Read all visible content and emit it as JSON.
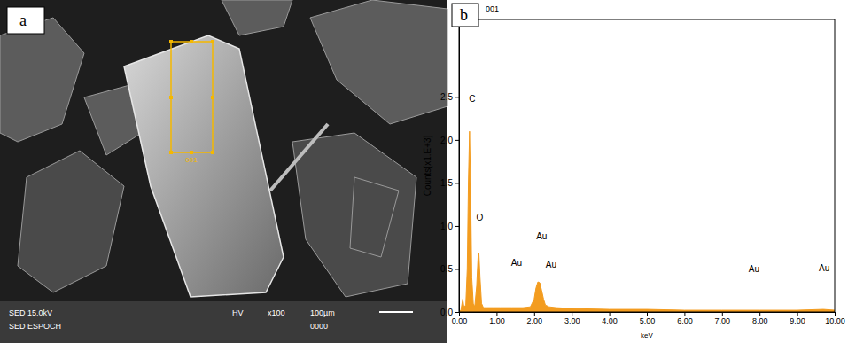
{
  "chart_data": {
    "type": "area",
    "title": "001",
    "panel_label": "b",
    "x_label": "keV",
    "y_label": "Counts[x1.E+3]",
    "color": "#f39c1f",
    "x": [
      0.0,
      0.05,
      0.1,
      0.13,
      0.18,
      0.22,
      0.25,
      0.28,
      0.31,
      0.34,
      0.38,
      0.42,
      0.47,
      0.51,
      0.53,
      0.56,
      0.6,
      0.65,
      0.75,
      0.9,
      1.1,
      1.4,
      1.7,
      1.9,
      2.0,
      2.05,
      2.1,
      2.15,
      2.2,
      2.25,
      2.3,
      2.4,
      2.6,
      3.0,
      4.0,
      5.0,
      6.0,
      7.0,
      8.0,
      9.0,
      9.7,
      10.0
    ],
    "values": [
      0.0,
      0.02,
      0.15,
      0.06,
      0.08,
      0.5,
      1.5,
      2.1,
      1.4,
      0.4,
      0.1,
      0.06,
      0.3,
      0.66,
      0.68,
      0.4,
      0.1,
      0.05,
      0.05,
      0.05,
      0.05,
      0.05,
      0.05,
      0.06,
      0.15,
      0.28,
      0.35,
      0.34,
      0.25,
      0.15,
      0.08,
      0.06,
      0.05,
      0.04,
      0.03,
      0.03,
      0.02,
      0.02,
      0.02,
      0.02,
      0.03,
      0.02
    ],
    "xlim": [
      0,
      10
    ],
    "ylim": [
      0,
      3.4
    ],
    "xticks": [
      {
        "value": 0,
        "label": "0.00"
      },
      {
        "value": 1,
        "label": "1.00"
      },
      {
        "value": 2,
        "label": "2.00"
      },
      {
        "value": 3,
        "label": "3.00"
      },
      {
        "value": 4,
        "label": "4.00"
      },
      {
        "value": 5,
        "label": "5.00"
      },
      {
        "value": 6,
        "label": "6.00"
      },
      {
        "value": 7,
        "label": "7.00"
      },
      {
        "value": 8,
        "label": "8.00"
      },
      {
        "value": 9,
        "label": "9.00"
      },
      {
        "value": 10,
        "label": "10.00"
      }
    ],
    "yticks": [
      {
        "value": 0,
        "label": "0.0"
      },
      {
        "value": 0.5,
        "label": "0.5"
      },
      {
        "value": 1,
        "label": "1.0"
      },
      {
        "value": 1.5,
        "label": "1.5"
      },
      {
        "value": 2,
        "label": "2.0"
      },
      {
        "value": 2.5,
        "label": "2.5"
      }
    ],
    "annotations": [
      {
        "text": "C",
        "x": 0.35,
        "y": 2.44
      },
      {
        "text": "O",
        "x": 0.55,
        "y": 1.06
      },
      {
        "text": "Au",
        "x": 1.53,
        "y": 0.54
      },
      {
        "text": "Au",
        "x": 2.2,
        "y": 0.85
      },
      {
        "text": "Au",
        "x": 2.45,
        "y": 0.52
      },
      {
        "text": "Au",
        "x": 7.85,
        "y": 0.46
      },
      {
        "text": "Au",
        "x": 9.72,
        "y": 0.47
      }
    ]
  },
  "micrograph": {
    "panel_label": "a",
    "region_label": "001",
    "info_texts": [
      "SED 15.0kV",
      "SED ESPOCH",
      "HV",
      "x100",
      "100µm",
      "0000"
    ]
  }
}
